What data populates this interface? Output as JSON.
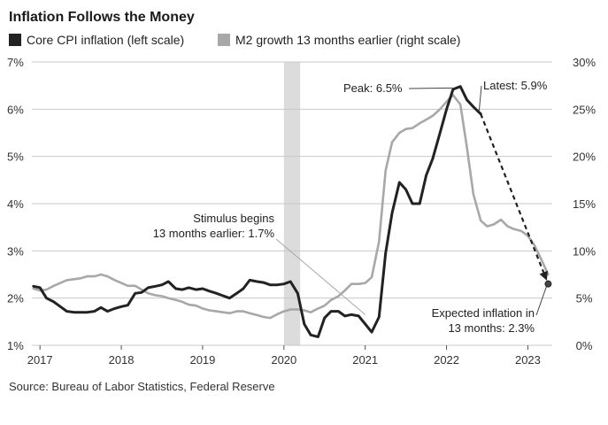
{
  "chart_data": {
    "type": "line",
    "title": "Inflation Follows the Money",
    "source": "Source: Bureau of Labor Statistics, Federal Reserve",
    "x_ticks": [
      {
        "label": "2017",
        "x": 2017.0
      },
      {
        "label": "2018",
        "x": 2018.0
      },
      {
        "label": "2019",
        "x": 2019.0
      },
      {
        "label": "2020",
        "x": 2020.0
      },
      {
        "label": "2021",
        "x": 2021.0
      },
      {
        "label": "2022",
        "x": 2022.0
      },
      {
        "label": "2023",
        "x": 2023.0
      }
    ],
    "xlim": [
      2016.9,
      2023.3
    ],
    "left_axis": {
      "ylim": [
        1,
        7
      ],
      "ticks": [
        "1%",
        "2%",
        "3%",
        "4%",
        "5%",
        "6%",
        "7%"
      ],
      "values": [
        1,
        2,
        3,
        4,
        5,
        6,
        7
      ]
    },
    "right_axis": {
      "ylim": [
        0,
        30
      ],
      "ticks": [
        "0%",
        "5%",
        "10%",
        "15%",
        "20%",
        "25%",
        "30%"
      ],
      "values": [
        0,
        5,
        10,
        15,
        20,
        25,
        30
      ]
    },
    "shaded_region": {
      "x": [
        2020.0,
        2020.2
      ]
    },
    "grid": true,
    "legend_position": "top-left",
    "colors": {
      "core": "#222222",
      "m2": "#a8a8a8",
      "shade": "#dcdcdc",
      "grid": "#c8c8c8"
    },
    "series": [
      {
        "name": "Core CPI inflation (left scale)",
        "axis": "left",
        "color": "#222222",
        "points": [
          [
            2016.92,
            2.25
          ],
          [
            2017.0,
            2.22
          ],
          [
            2017.08,
            2.0
          ],
          [
            2017.17,
            1.92
          ],
          [
            2017.25,
            1.82
          ],
          [
            2017.33,
            1.72
          ],
          [
            2017.42,
            1.7
          ],
          [
            2017.5,
            1.7
          ],
          [
            2017.58,
            1.7
          ],
          [
            2017.67,
            1.72
          ],
          [
            2017.75,
            1.8
          ],
          [
            2017.83,
            1.72
          ],
          [
            2017.92,
            1.78
          ],
          [
            2018.0,
            1.82
          ],
          [
            2018.08,
            1.85
          ],
          [
            2018.17,
            2.1
          ],
          [
            2018.25,
            2.12
          ],
          [
            2018.33,
            2.22
          ],
          [
            2018.42,
            2.25
          ],
          [
            2018.5,
            2.28
          ],
          [
            2018.58,
            2.35
          ],
          [
            2018.67,
            2.2
          ],
          [
            2018.75,
            2.18
          ],
          [
            2018.83,
            2.22
          ],
          [
            2018.92,
            2.18
          ],
          [
            2019.0,
            2.2
          ],
          [
            2019.08,
            2.15
          ],
          [
            2019.17,
            2.1
          ],
          [
            2019.25,
            2.05
          ],
          [
            2019.33,
            2.0
          ],
          [
            2019.42,
            2.1
          ],
          [
            2019.5,
            2.2
          ],
          [
            2019.58,
            2.38
          ],
          [
            2019.67,
            2.35
          ],
          [
            2019.75,
            2.33
          ],
          [
            2019.83,
            2.28
          ],
          [
            2019.92,
            2.28
          ],
          [
            2020.0,
            2.3
          ],
          [
            2020.08,
            2.35
          ],
          [
            2020.17,
            2.1
          ],
          [
            2020.25,
            1.45
          ],
          [
            2020.33,
            1.22
          ],
          [
            2020.42,
            1.18
          ],
          [
            2020.5,
            1.58
          ],
          [
            2020.58,
            1.72
          ],
          [
            2020.67,
            1.72
          ],
          [
            2020.75,
            1.62
          ],
          [
            2020.83,
            1.65
          ],
          [
            2020.92,
            1.62
          ],
          [
            2021.0,
            1.45
          ],
          [
            2021.08,
            1.28
          ],
          [
            2021.17,
            1.6
          ],
          [
            2021.25,
            2.95
          ],
          [
            2021.33,
            3.8
          ],
          [
            2021.42,
            4.45
          ],
          [
            2021.5,
            4.3
          ],
          [
            2021.58,
            4.0
          ],
          [
            2021.67,
            4.0
          ],
          [
            2021.75,
            4.6
          ],
          [
            2021.83,
            4.95
          ],
          [
            2021.92,
            5.5
          ],
          [
            2022.0,
            6.0
          ],
          [
            2022.08,
            6.42
          ],
          [
            2022.17,
            6.48
          ],
          [
            2022.25,
            6.2
          ],
          [
            2022.33,
            6.05
          ],
          [
            2022.42,
            5.9
          ]
        ]
      },
      {
        "name": "M2 growth 13 months earlier (right scale)",
        "axis": "right",
        "color": "#a8a8a8",
        "points": [
          [
            2016.92,
            6.0
          ],
          [
            2017.0,
            5.8
          ],
          [
            2017.08,
            5.9
          ],
          [
            2017.17,
            6.3
          ],
          [
            2017.25,
            6.6
          ],
          [
            2017.33,
            6.9
          ],
          [
            2017.42,
            7.0
          ],
          [
            2017.5,
            7.1
          ],
          [
            2017.58,
            7.3
          ],
          [
            2017.67,
            7.3
          ],
          [
            2017.75,
            7.5
          ],
          [
            2017.83,
            7.3
          ],
          [
            2017.92,
            6.9
          ],
          [
            2018.0,
            6.6
          ],
          [
            2018.08,
            6.3
          ],
          [
            2018.17,
            6.3
          ],
          [
            2018.25,
            5.9
          ],
          [
            2018.33,
            5.5
          ],
          [
            2018.42,
            5.3
          ],
          [
            2018.5,
            5.2
          ],
          [
            2018.58,
            5.0
          ],
          [
            2018.67,
            4.8
          ],
          [
            2018.75,
            4.6
          ],
          [
            2018.83,
            4.3
          ],
          [
            2018.92,
            4.2
          ],
          [
            2019.0,
            3.9
          ],
          [
            2019.08,
            3.7
          ],
          [
            2019.17,
            3.6
          ],
          [
            2019.25,
            3.5
          ],
          [
            2019.33,
            3.4
          ],
          [
            2019.42,
            3.6
          ],
          [
            2019.5,
            3.6
          ],
          [
            2019.58,
            3.4
          ],
          [
            2019.67,
            3.2
          ],
          [
            2019.75,
            3.0
          ],
          [
            2019.83,
            2.9
          ],
          [
            2019.92,
            3.3
          ],
          [
            2020.0,
            3.6
          ],
          [
            2020.08,
            3.8
          ],
          [
            2020.17,
            3.8
          ],
          [
            2020.25,
            3.7
          ],
          [
            2020.33,
            3.5
          ],
          [
            2020.42,
            3.9
          ],
          [
            2020.5,
            4.2
          ],
          [
            2020.58,
            4.8
          ],
          [
            2020.67,
            5.2
          ],
          [
            2020.75,
            5.8
          ],
          [
            2020.83,
            6.5
          ],
          [
            2020.92,
            6.5
          ],
          [
            2021.0,
            6.6
          ],
          [
            2021.08,
            7.2
          ],
          [
            2021.17,
            11.0
          ],
          [
            2021.25,
            18.5
          ],
          [
            2021.33,
            21.5
          ],
          [
            2021.42,
            22.5
          ],
          [
            2021.5,
            22.9
          ],
          [
            2021.58,
            23.0
          ],
          [
            2021.67,
            23.5
          ],
          [
            2021.75,
            23.9
          ],
          [
            2021.83,
            24.3
          ],
          [
            2021.92,
            25.0
          ],
          [
            2022.0,
            25.8
          ],
          [
            2022.08,
            26.5
          ],
          [
            2022.17,
            25.5
          ],
          [
            2022.25,
            21.0
          ],
          [
            2022.33,
            16.0
          ],
          [
            2022.42,
            13.2
          ],
          [
            2022.5,
            12.6
          ],
          [
            2022.58,
            12.8
          ],
          [
            2022.67,
            13.3
          ],
          [
            2022.75,
            12.6
          ],
          [
            2022.83,
            12.3
          ],
          [
            2022.92,
            12.1
          ],
          [
            2023.0,
            11.6
          ],
          [
            2023.08,
            10.6
          ],
          [
            2023.17,
            9.0
          ],
          [
            2023.25,
            7.5
          ]
        ]
      }
    ],
    "projection": {
      "from": [
        2022.42,
        5.9
      ],
      "to": [
        2023.25,
        2.3
      ],
      "style": "dashed-arrow"
    },
    "annotations": {
      "peak": "Peak: 6.5%",
      "latest": "Latest: 5.9%",
      "stimulus_line1": "Stimulus begins",
      "stimulus_line2": "13 months earlier: 1.7%",
      "expected_line1": "Expected inflation in",
      "expected_line2": "13 months: 2.3%"
    }
  }
}
